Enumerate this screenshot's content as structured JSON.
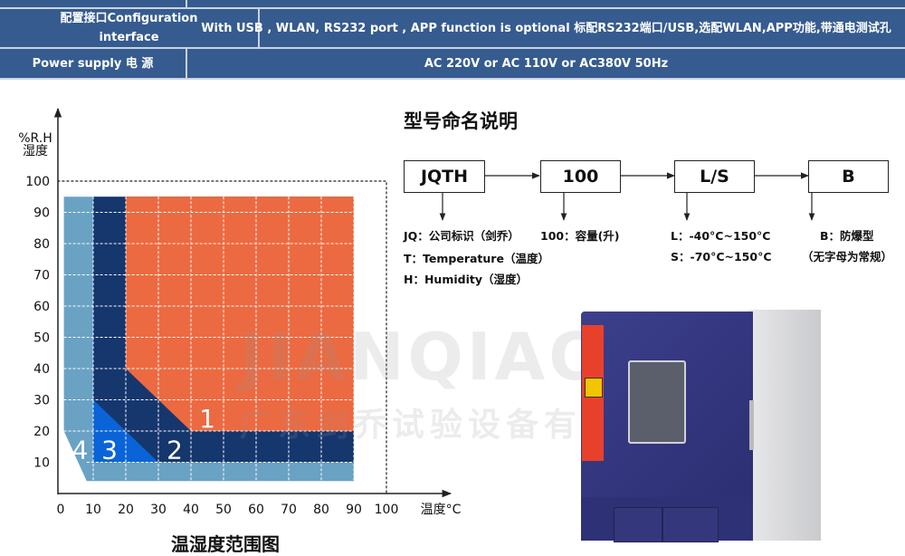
{
  "spec_table": {
    "rows": [
      {
        "label": "",
        "value": ""
      },
      {
        "label": "配置接口Configuration interface",
        "value": "With USB , WLAN, RS232  port , APP function is optional 标配RS232端口/USB,选配WLAN,APP功能,带通电测试孔"
      },
      {
        "label": "Power supply 电 源",
        "value": "AC 220V or AC 110V or AC380V 50Hz"
      }
    ]
  },
  "chart_data": {
    "type": "area",
    "title": "温湿度范围图",
    "xlabel": "温度°C",
    "ylabel": "%R.H 湿度",
    "ylabel_lines": [
      "%R.H",
      "湿度"
    ],
    "xlim": [
      0,
      100
    ],
    "ylim": [
      0,
      100
    ],
    "xticks": [
      "0",
      "10",
      "20",
      "30",
      "40",
      "50",
      "60",
      "70",
      "80",
      "90",
      "100"
    ],
    "yticks": [
      "10",
      "20",
      "30",
      "40",
      "50",
      "60",
      "70",
      "80",
      "90",
      "100"
    ],
    "grid": true,
    "regions": [
      {
        "label": "4",
        "color": "#6aa2c4",
        "polygon": [
          [
            1,
            95
          ],
          [
            90,
            95
          ],
          [
            90,
            4
          ],
          [
            8,
            4
          ],
          [
            1,
            20
          ]
        ],
        "label_at": [
          6,
          14
        ]
      },
      {
        "label": "2",
        "color": "#16366e",
        "polygon": [
          [
            10,
            95
          ],
          [
            90,
            95
          ],
          [
            90,
            10
          ],
          [
            10,
            10
          ]
        ],
        "label_at": [
          35,
          14
        ]
      },
      {
        "label": "1",
        "color": "#ec6a41",
        "polygon": [
          [
            20,
            95
          ],
          [
            90,
            95
          ],
          [
            90,
            20
          ],
          [
            40,
            20
          ],
          [
            20,
            40
          ]
        ],
        "label_at": [
          45,
          24
        ]
      },
      {
        "label": "3",
        "color": "#0b63d8",
        "polygon": [
          [
            10,
            30
          ],
          [
            30,
            10
          ],
          [
            10,
            10
          ]
        ],
        "label_at": [
          15,
          14
        ]
      }
    ]
  },
  "naming": {
    "title": "型号命名说明",
    "boxes": [
      "JQTH",
      "100",
      "L/S",
      "B"
    ],
    "desc_jqth": [
      "JQ：公司标识（剑乔）",
      "T：Temperature（温度）",
      "H：Humidity（湿度）"
    ],
    "desc_100": [
      "100：容量(升)"
    ],
    "desc_ls": [
      "L：-40°C~150°C",
      "S：-70°C~150°C"
    ],
    "desc_b": [
      "B：防爆型",
      "（无字母为常规）"
    ]
  },
  "watermark": {
    "brand": "JIANQIAO",
    "company": "广东剑乔试验设备有限公司"
  }
}
